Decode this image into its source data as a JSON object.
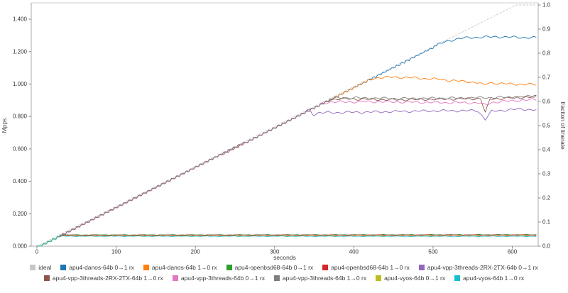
{
  "chart_data": {
    "type": "line",
    "title": "",
    "xlabel": "seconds",
    "ylabel_left": "Mpps",
    "ylabel_right": "fraction of linerate",
    "xlim_seconds": [
      0,
      630
    ],
    "ylim_left_mpps": [
      0,
      1.488
    ],
    "ylim_right_fraction": [
      0,
      1.0
    ],
    "x_ticks_seconds": [
      0,
      100,
      200,
      300,
      400,
      500,
      600
    ],
    "y_ticks_left_mpps": [
      "0.000",
      "0.200",
      "0.400",
      "0.600",
      "0.800",
      "1.000",
      "1.200",
      "1.400"
    ],
    "y_ticks_right_fraction": [
      "0.0",
      "0.1",
      "0.2",
      "0.3",
      "0.4",
      "0.5",
      "0.6",
      "0.7",
      "0.8",
      "0.9",
      "1.0"
    ],
    "grid": false,
    "legend_position": "bottom",
    "legend_rows": [
      6,
      5
    ],
    "series": [
      {
        "name": "ideal",
        "color": "#c7c7c7",
        "style": "dashed",
        "ramp_until_s": 0,
        "points_s_fraction": [
          [
            0,
            0
          ],
          [
            605,
            1.0
          ],
          [
            630,
            1.0
          ]
        ]
      },
      {
        "name": "apu4-danos-64b 0→1 rx",
        "color": "#1f77b4",
        "style": "solid",
        "ramp_until_s": 505,
        "points_s_fraction": [
          [
            0,
            0
          ],
          [
            505,
            0.835
          ],
          [
            520,
            0.852
          ],
          [
            535,
            0.862
          ],
          [
            555,
            0.866
          ],
          [
            580,
            0.868
          ],
          [
            605,
            0.866
          ],
          [
            630,
            0.864
          ]
        ]
      },
      {
        "name": "apu4-danos-64b 1→0 rx",
        "color": "#ff7f0e",
        "style": "solid",
        "ramp_until_s": 418,
        "points_s_fraction": [
          [
            0,
            0
          ],
          [
            418,
            0.691
          ],
          [
            432,
            0.699
          ],
          [
            450,
            0.701
          ],
          [
            475,
            0.698
          ],
          [
            505,
            0.692
          ],
          [
            535,
            0.684
          ],
          [
            558,
            0.678
          ],
          [
            564,
            0.666
          ],
          [
            570,
            0.677
          ],
          [
            600,
            0.672
          ],
          [
            630,
            0.67
          ]
        ]
      },
      {
        "name": "apu4-openbsd68-64b 0→1 rx",
        "color": "#2ca02c",
        "style": "solid",
        "ramp_until_s": 28,
        "points_s_fraction": [
          [
            0,
            0
          ],
          [
            28,
            0.0465
          ],
          [
            630,
            0.0475
          ]
        ]
      },
      {
        "name": "apu4-openbsd68-64b 1→0 rx",
        "color": "#d62728",
        "style": "solid",
        "ramp_until_s": 28,
        "points_s_fraction": [
          [
            0,
            0
          ],
          [
            28,
            0.046
          ],
          [
            630,
            0.0465
          ]
        ]
      },
      {
        "name": "apu4-vpp-3threads-2RX-2TX-64b 0→1 rx",
        "color": "#9467bd",
        "style": "solid",
        "ramp_until_s": 338,
        "points_s_fraction": [
          [
            0,
            0
          ],
          [
            338,
            0.559
          ],
          [
            344,
            0.566
          ],
          [
            349,
            0.545
          ],
          [
            356,
            0.553
          ],
          [
            420,
            0.556
          ],
          [
            500,
            0.561
          ],
          [
            556,
            0.562
          ],
          [
            566,
            0.526
          ],
          [
            574,
            0.559
          ],
          [
            605,
            0.568
          ],
          [
            630,
            0.566
          ]
        ]
      },
      {
        "name": "apu4-vpp-3threads-2RX-2TX-64b 1→0 rx",
        "color": "#8c564b",
        "style": "solid",
        "ramp_until_s": 368,
        "points_s_fraction": [
          [
            0,
            0
          ],
          [
            368,
            0.608
          ],
          [
            385,
            0.611
          ],
          [
            450,
            0.607
          ],
          [
            520,
            0.61
          ],
          [
            560,
            0.612
          ],
          [
            566,
            0.553
          ],
          [
            572,
            0.61
          ],
          [
            605,
            0.616
          ],
          [
            630,
            0.62
          ]
        ]
      },
      {
        "name": "apu4-vpp-3threads-64b 0→1 rx",
        "color": "#e377c2",
        "style": "solid",
        "ramp_until_s": 358,
        "points_s_fraction": [
          [
            0,
            0
          ],
          [
            358,
            0.592
          ],
          [
            372,
            0.598
          ],
          [
            430,
            0.599
          ],
          [
            500,
            0.596
          ],
          [
            558,
            0.594
          ],
          [
            566,
            0.585
          ],
          [
            574,
            0.596
          ],
          [
            605,
            0.604
          ],
          [
            630,
            0.608
          ]
        ]
      },
      {
        "name": "apu4-vpp-3threads-64b 1→0 rx",
        "color": "#7f7f7f",
        "style": "solid",
        "ramp_until_s": 370,
        "points_s_fraction": [
          [
            0,
            0
          ],
          [
            370,
            0.612
          ],
          [
            390,
            0.615
          ],
          [
            460,
            0.612
          ],
          [
            530,
            0.614
          ],
          [
            605,
            0.618
          ],
          [
            630,
            0.622
          ]
        ]
      },
      {
        "name": "apu4-vyos-64b 0→1 rx",
        "color": "#bcbd22",
        "style": "solid",
        "ramp_until_s": 26,
        "points_s_fraction": [
          [
            0,
            0
          ],
          [
            26,
            0.0425
          ],
          [
            630,
            0.042
          ]
        ]
      },
      {
        "name": "apu4-vyos-64b 1→0 rx",
        "color": "#17becf",
        "style": "solid",
        "ramp_until_s": 26,
        "points_s_fraction": [
          [
            0,
            0
          ],
          [
            26,
            0.0415
          ],
          [
            630,
            0.041
          ]
        ]
      }
    ]
  }
}
